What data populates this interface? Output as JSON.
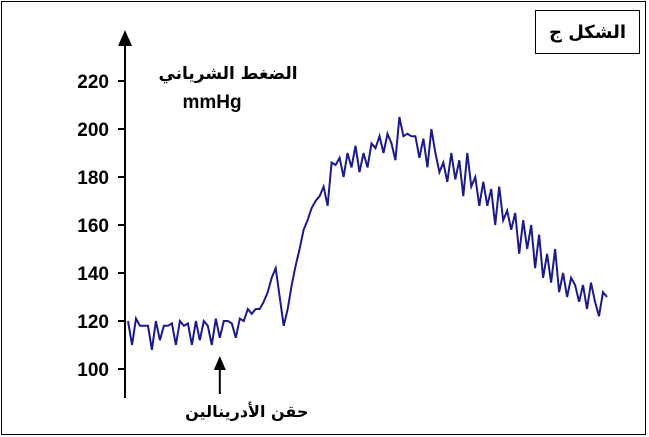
{
  "figure_label": "الشكل ج",
  "chart_data": {
    "type": "line",
    "title": "",
    "ylabel": "الضغط الشرياني",
    "yunit": "mmHg",
    "xlabel": "",
    "ylim": [
      95,
      232
    ],
    "yticks": [
      100,
      120,
      140,
      160,
      180,
      200,
      220
    ],
    "grid": false,
    "annotations": [
      {
        "text": "حقن الأدرينالين",
        "x": 23
      }
    ],
    "series": [
      {
        "color": "#1a1a8c",
        "x": [
          0,
          1,
          2,
          3,
          4,
          5,
          6,
          7,
          8,
          9,
          10,
          11,
          12,
          13,
          14,
          15,
          16,
          17,
          18,
          19,
          20,
          21,
          22,
          23,
          24,
          25,
          26,
          27,
          28,
          29,
          30,
          31,
          32,
          33,
          34,
          35,
          36,
          37,
          38,
          39,
          40,
          41,
          42,
          43,
          44,
          45,
          46,
          47,
          48,
          49,
          50,
          51,
          52,
          53,
          54,
          55,
          56,
          57,
          58,
          59,
          60,
          61,
          62,
          63,
          64,
          65,
          66,
          67,
          68,
          69,
          70,
          71,
          72,
          73,
          74,
          75,
          76,
          77,
          78,
          79,
          80,
          81,
          82,
          83,
          84,
          85,
          86,
          87,
          88,
          89,
          90,
          91,
          92,
          93,
          94,
          95,
          96,
          97,
          98,
          99,
          100,
          101,
          102,
          103,
          104,
          105,
          106,
          107,
          108,
          109,
          110,
          111,
          112,
          113,
          114,
          115,
          116,
          117,
          118,
          119,
          120
        ],
        "values": [
          120,
          110,
          121,
          118,
          118,
          118,
          108,
          120,
          112,
          118,
          118,
          119,
          110,
          120,
          118,
          119,
          110,
          120,
          112,
          120,
          118,
          110,
          121,
          113,
          120,
          120,
          119,
          113,
          121,
          120,
          125,
          123,
          125,
          125,
          128,
          132,
          138,
          142,
          130,
          118,
          125,
          135,
          143,
          150,
          158,
          162,
          167,
          170,
          172,
          176,
          168,
          186,
          185,
          188,
          180,
          190,
          184,
          193,
          182,
          190,
          184,
          194,
          192,
          197,
          190,
          198,
          194,
          187,
          205,
          197,
          198,
          197,
          197,
          188,
          196,
          184,
          200,
          190,
          182,
          186,
          178,
          190,
          179,
          187,
          172,
          190,
          176,
          180,
          168,
          178,
          168,
          175,
          160,
          176,
          162,
          166,
          158,
          165,
          148,
          162,
          150,
          160,
          142,
          156,
          138,
          148,
          136,
          150,
          132,
          140,
          130,
          138,
          135,
          128,
          135,
          125,
          136,
          128,
          122,
          132,
          130
        ]
      }
    ]
  }
}
